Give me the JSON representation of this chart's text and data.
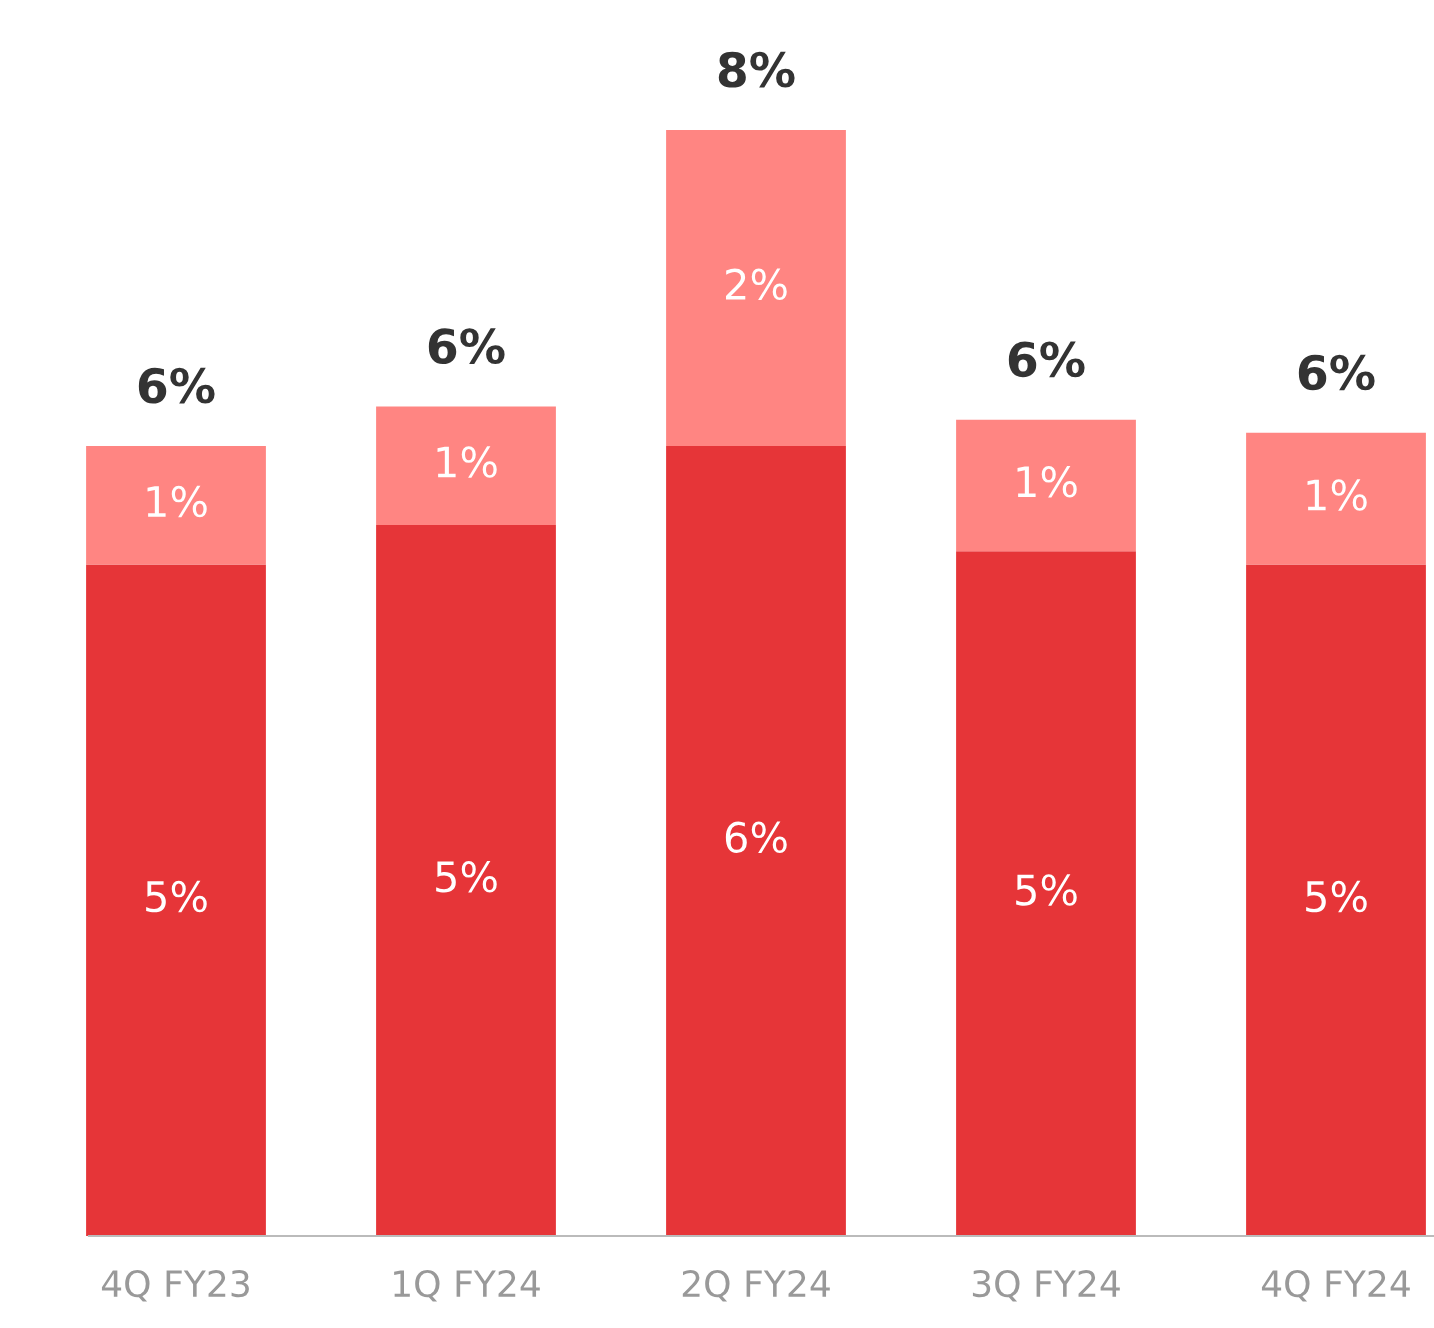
{
  "chart_data": {
    "type": "bar",
    "stacked": true,
    "categories": [
      "4Q FY23",
      "1Q FY24",
      "2Q FY24",
      "3Q FY24",
      "4Q FY24"
    ],
    "series": [
      {
        "color": "#e63538",
        "values": [
          5.1,
          5.4,
          6.0,
          5.2,
          5.1
        ],
        "value_labels": [
          "5%",
          "5%",
          "6%",
          "5%",
          "5%"
        ]
      },
      {
        "color": "#ff8582",
        "values": [
          0.9,
          0.9,
          2.4,
          1.0,
          1.0
        ],
        "value_labels": [
          "1%",
          "1%",
          "2%",
          "1%",
          "1%"
        ]
      }
    ],
    "totals": [
      "6%",
      "6%",
      "8%",
      "6%",
      "6%"
    ],
    "grid": false,
    "legend": false
  }
}
